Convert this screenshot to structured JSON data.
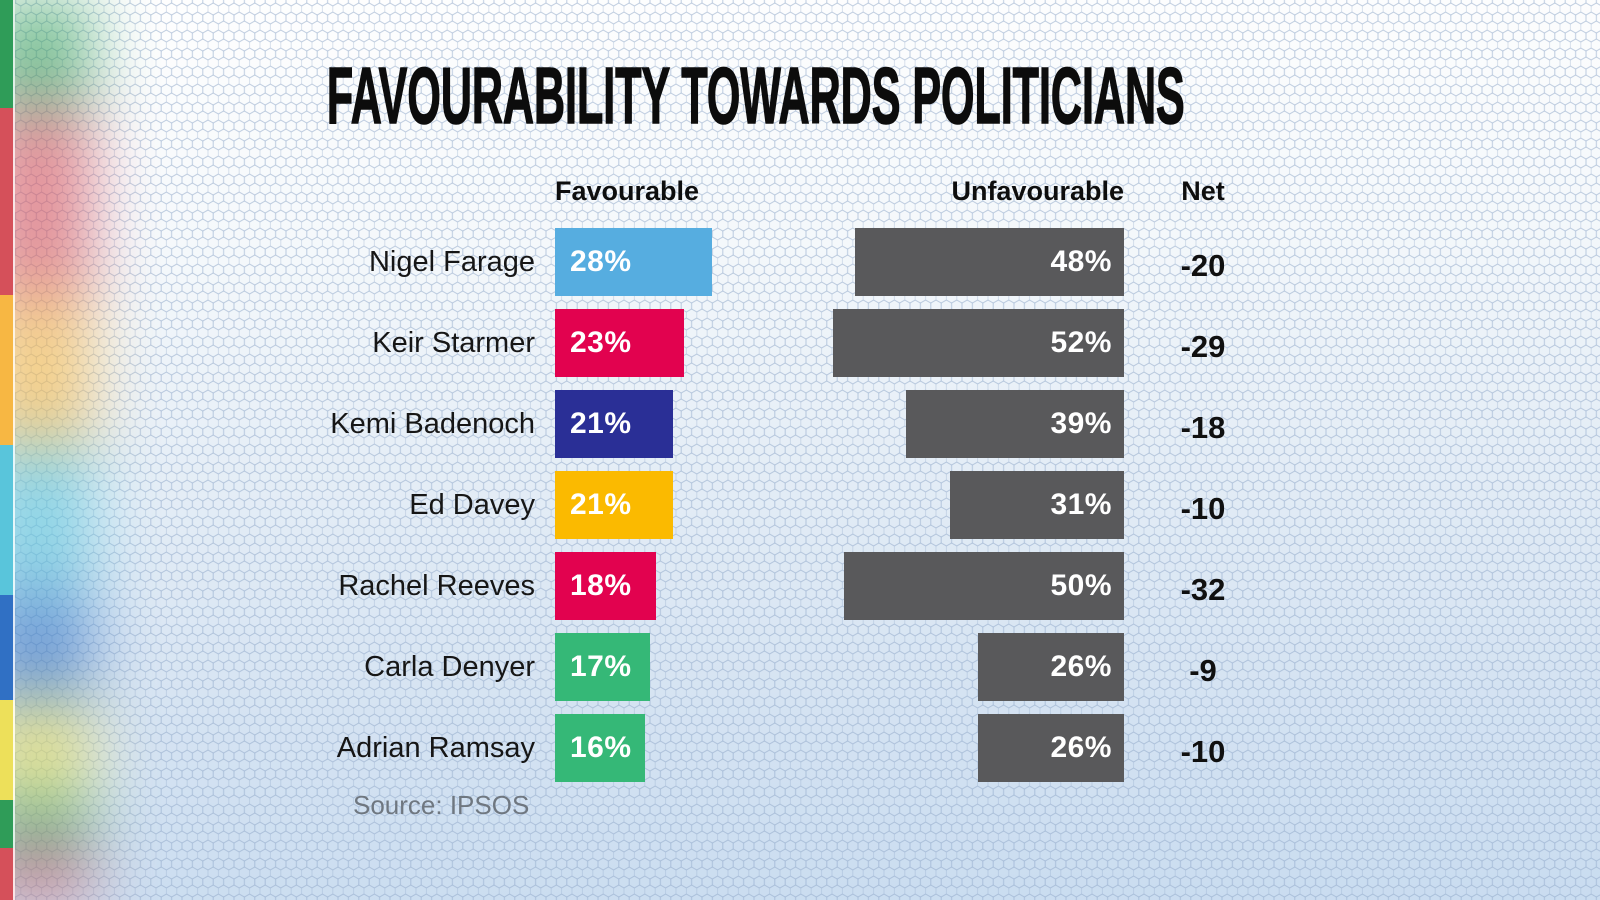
{
  "chart_data": {
    "type": "bar",
    "orientation": "horizontal",
    "title": "FAVOURABILITY TOWARDS POLITICIANS",
    "columns": [
      "Favourable",
      "Unfavourable",
      "Net"
    ],
    "categories": [
      "Nigel Farage",
      "Keir Starmer",
      "Kemi Badenoch",
      "Ed Davey",
      "Rachel Reeves",
      "Carla Denyer",
      "Adrian Ramsay"
    ],
    "series": [
      {
        "name": "Favourable",
        "values": [
          28,
          23,
          21,
          21,
          18,
          17,
          16
        ],
        "colors": [
          "#56ADE0",
          "#E2024F",
          "#2A2F96",
          "#FBBA00",
          "#E2024F",
          "#35B877",
          "#35B877"
        ]
      },
      {
        "name": "Unfavourable",
        "values": [
          48,
          52,
          39,
          31,
          50,
          26,
          26
        ],
        "color": "#59595B"
      },
      {
        "name": "Net",
        "values": [
          -20,
          -29,
          -18,
          -10,
          -32,
          -9,
          -10
        ]
      }
    ],
    "value_suffix": "%",
    "value_label_color": "#FFFFFF",
    "source": "Source: IPSOS",
    "xlim": [
      0,
      100
    ],
    "grid": false,
    "legend_position": "column-headers"
  },
  "decor": {
    "left_strip_colors": [
      "#2F9C58",
      "#D5505A",
      "#F7B743",
      "#59C5DB",
      "#3070C4",
      "#EDE05A",
      "#2F9C58",
      "#D5505A"
    ]
  }
}
